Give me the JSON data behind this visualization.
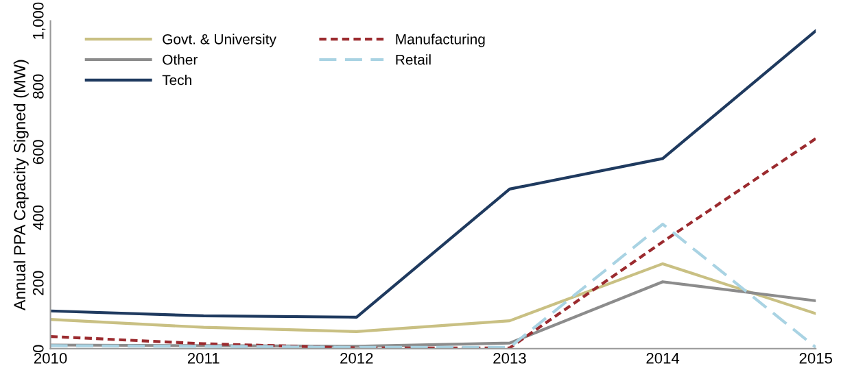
{
  "chart_data": {
    "type": "line",
    "ylabel": "Annual PPA Capacity Signed (MW)",
    "x": [
      2010,
      2011,
      2012,
      2013,
      2014,
      2015
    ],
    "xlim": [
      2010,
      2015
    ],
    "xticks": [
      2010,
      2011,
      2012,
      2013,
      2014,
      2015
    ],
    "ylim": [
      0,
      1000
    ],
    "yticks": [
      0,
      200,
      400,
      600,
      800,
      {
        "value": 1000,
        "label": "1,000"
      }
    ],
    "grid": false,
    "legend": "top left",
    "marker": "none",
    "series": [
      {
        "name": "Govt. & University",
        "color": "#c9c083",
        "line_style": "solid",
        "values": [
          89,
          65,
          52,
          85,
          259,
          107
        ]
      },
      {
        "name": "Other",
        "color": "#8c8c8c",
        "line_style": "solid",
        "values": [
          11,
          9,
          7,
          17,
          204,
          146
        ]
      },
      {
        "name": "Tech",
        "color": "#1f3a5f",
        "line_style": "solid",
        "values": [
          115,
          100,
          96,
          487,
          580,
          970
        ]
      },
      {
        "name": "Manufacturing",
        "color": "#9b2a2e",
        "line_style": "dotted",
        "values": [
          37,
          15,
          2,
          2,
          326,
          641
        ]
      },
      {
        "name": "Retail",
        "color": "#a9d3e3",
        "line_style": "dashed",
        "values": [
          9,
          7,
          4,
          4,
          380,
          4
        ]
      }
    ]
  }
}
